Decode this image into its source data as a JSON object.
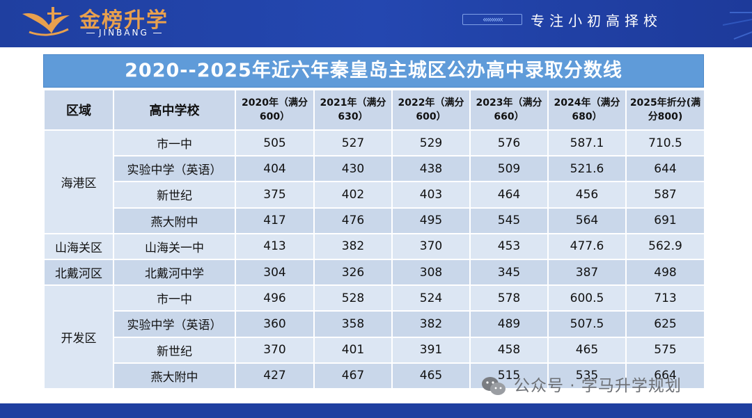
{
  "header": {
    "brand_name": "金榜升学",
    "brand_sub": "JINBANG",
    "slogan": "专注小初高择校",
    "chevrons": "‹‹‹‹‹‹‹‹‹‹"
  },
  "title": "2020--2025年近六年秦皇岛主城区公办高中录取分数线",
  "table": {
    "col_district": "区域",
    "col_school": "高中学校",
    "year_cols": [
      "2020年（满分600）",
      "2021年（满分630）",
      "2022年（满分600）",
      "2023年（满分660）",
      "2024年（满分680）",
      "2025年折分(满分800)"
    ],
    "districts": [
      "海港区",
      "山海关区",
      "北戴河区",
      "开发区"
    ],
    "rows": [
      {
        "school": "市一中",
        "scores": [
          "505",
          "527",
          "529",
          "576",
          "587.1",
          "710.5"
        ]
      },
      {
        "school": "实验中学（英语）",
        "scores": [
          "404",
          "430",
          "438",
          "509",
          "521.6",
          "644"
        ]
      },
      {
        "school": "新世纪",
        "scores": [
          "375",
          "402",
          "403",
          "464",
          "456",
          "587"
        ]
      },
      {
        "school": "燕大附中",
        "scores": [
          "417",
          "476",
          "495",
          "545",
          "564",
          "691"
        ]
      },
      {
        "school": "山海关一中",
        "scores": [
          "413",
          "382",
          "370",
          "453",
          "477.6",
          "562.9"
        ]
      },
      {
        "school": "北戴河中学",
        "scores": [
          "304",
          "326",
          "308",
          "345",
          "387",
          "498"
        ]
      },
      {
        "school": "市一中",
        "scores": [
          "496",
          "528",
          "524",
          "578",
          "600.5",
          "713"
        ]
      },
      {
        "school": "实验中学（英语）",
        "scores": [
          "360",
          "358",
          "382",
          "489",
          "507.5",
          "625"
        ]
      },
      {
        "school": "新世纪",
        "scores": [
          "370",
          "401",
          "391",
          "458",
          "465",
          "575"
        ]
      },
      {
        "school": "燕大附中",
        "scores": [
          "427",
          "467",
          "465",
          "515",
          "535",
          "664"
        ]
      }
    ]
  },
  "watermark": "公众号 · 学马升学规划",
  "colors": {
    "header_blue": "#2447b0",
    "title_blue": "#5f9bd9",
    "brand_orange": "#e8a04e",
    "row_light": "#dce6f3",
    "row_dark": "#c9d7ea"
  }
}
